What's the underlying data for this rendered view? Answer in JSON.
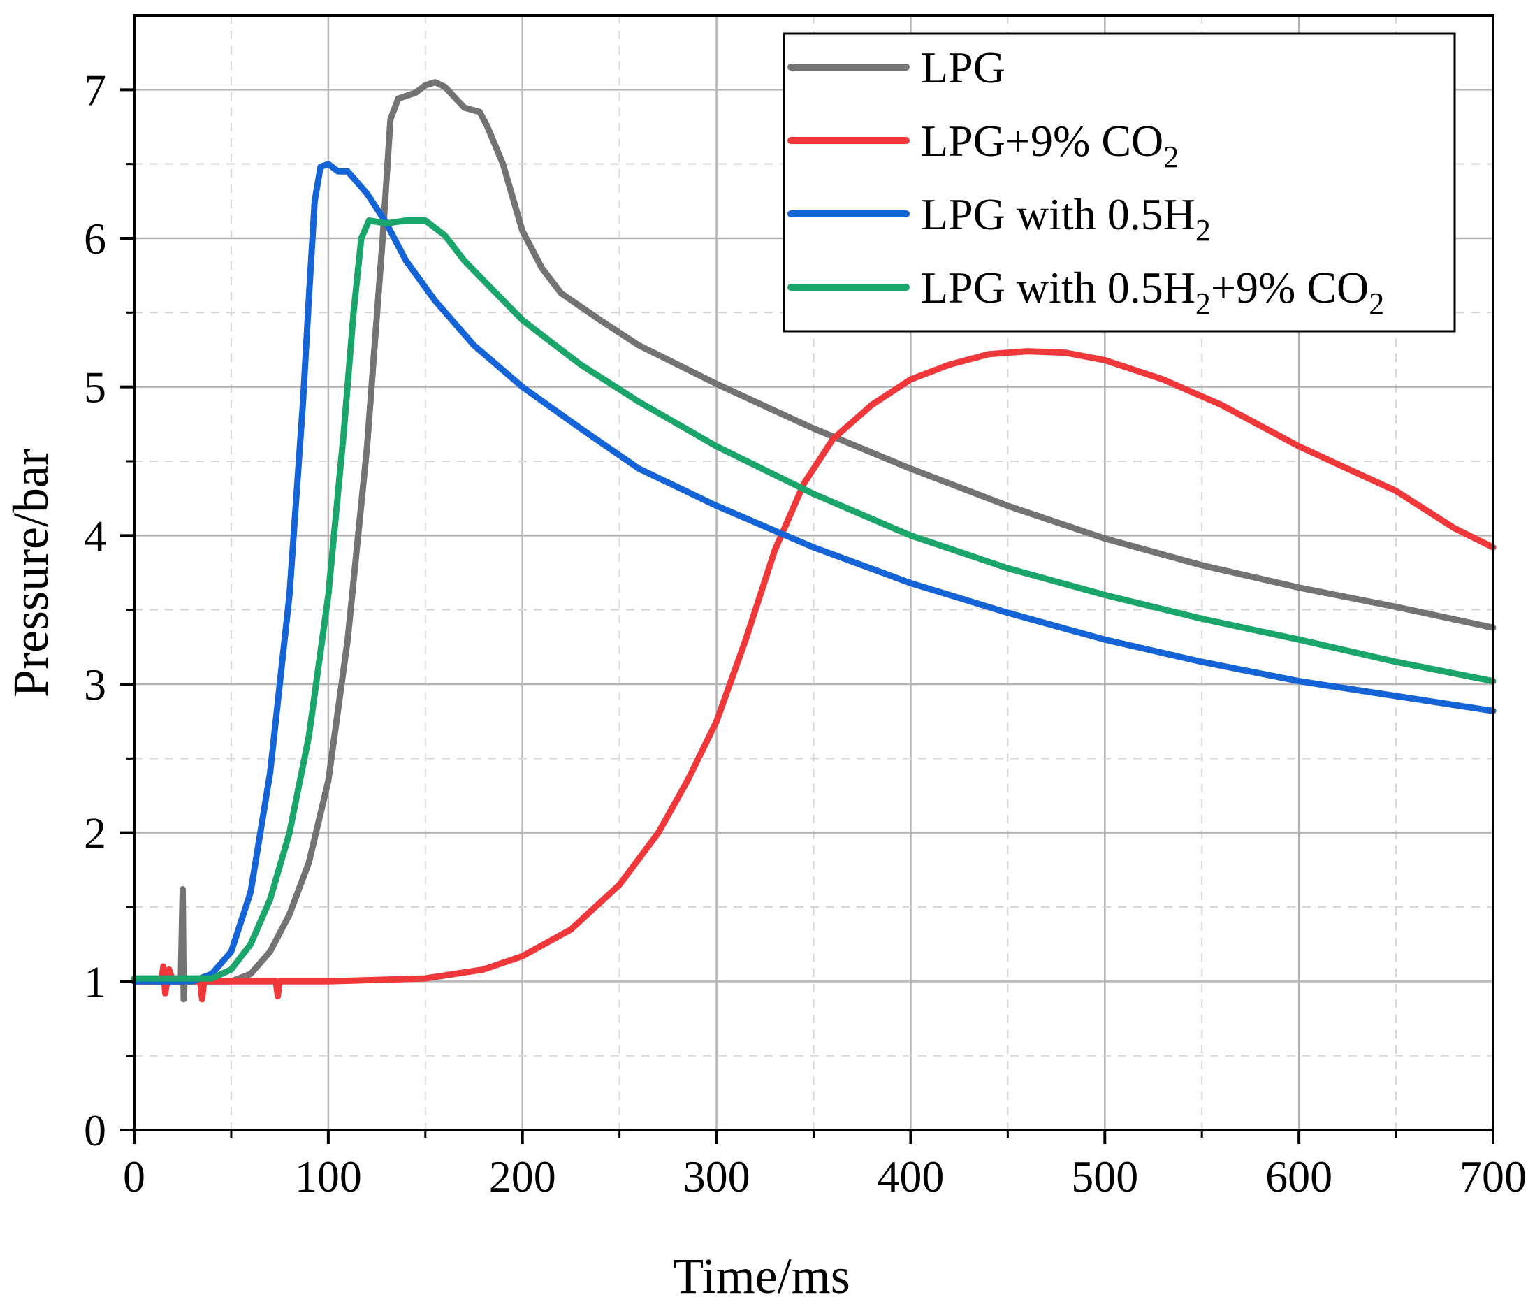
{
  "chart_data": {
    "type": "line",
    "title": "",
    "xlabel": "Time/ms",
    "ylabel": "Pressure/bar",
    "xlim": [
      0,
      700
    ],
    "ylim": [
      0,
      7.5
    ],
    "xticks": [
      0,
      100,
      200,
      300,
      400,
      500,
      600,
      700
    ],
    "xtick_labels": [
      "0",
      "100",
      "200",
      "300",
      "400",
      "500",
      "600",
      "700"
    ],
    "yticks": [
      0,
      1,
      2,
      3,
      4,
      5,
      6,
      7
    ],
    "ytick_labels": [
      "0",
      "1",
      "2",
      "3",
      "4",
      "5",
      "6",
      "7"
    ],
    "grid": true,
    "legend_position": "top-right",
    "series": [
      {
        "name": "LPG",
        "legend_main": "LPG",
        "legend_sub": "",
        "legend_tail": "",
        "legend_sub2": "",
        "color": "#737373",
        "points": [
          [
            0,
            1.0
          ],
          [
            20,
            1.0
          ],
          [
            24,
            1.0
          ],
          [
            25,
            1.62
          ],
          [
            25.5,
            0.88
          ],
          [
            26,
            1.0
          ],
          [
            50,
            1.0
          ],
          [
            60,
            1.05
          ],
          [
            70,
            1.2
          ],
          [
            80,
            1.45
          ],
          [
            90,
            1.8
          ],
          [
            100,
            2.35
          ],
          [
            110,
            3.3
          ],
          [
            120,
            4.6
          ],
          [
            128,
            6.0
          ],
          [
            132,
            6.8
          ],
          [
            136,
            6.94
          ],
          [
            145,
            6.98
          ],
          [
            150,
            7.03
          ],
          [
            155,
            7.05
          ],
          [
            160,
            7.02
          ],
          [
            170,
            6.88
          ],
          [
            178,
            6.85
          ],
          [
            182,
            6.75
          ],
          [
            190,
            6.5
          ],
          [
            200,
            6.05
          ],
          [
            210,
            5.8
          ],
          [
            220,
            5.63
          ],
          [
            240,
            5.45
          ],
          [
            260,
            5.28
          ],
          [
            300,
            5.02
          ],
          [
            350,
            4.72
          ],
          [
            400,
            4.45
          ],
          [
            450,
            4.2
          ],
          [
            500,
            3.98
          ],
          [
            550,
            3.8
          ],
          [
            600,
            3.65
          ],
          [
            650,
            3.52
          ],
          [
            700,
            3.38
          ]
        ]
      },
      {
        "name": "LPG+9% CO2",
        "legend_main": "LPG+9% CO",
        "legend_sub": "2",
        "legend_tail": "",
        "legend_sub2": "",
        "color": "#f0373a",
        "points": [
          [
            0,
            1.0
          ],
          [
            14,
            1.0
          ],
          [
            15,
            1.1
          ],
          [
            16,
            0.92
          ],
          [
            18,
            1.08
          ],
          [
            20,
            1.0
          ],
          [
            34,
            1.0
          ],
          [
            35,
            0.88
          ],
          [
            36,
            1.0
          ],
          [
            73,
            1.0
          ],
          [
            74,
            0.9
          ],
          [
            75,
            1.0
          ],
          [
            100,
            1.0
          ],
          [
            150,
            1.02
          ],
          [
            180,
            1.08
          ],
          [
            200,
            1.17
          ],
          [
            225,
            1.35
          ],
          [
            250,
            1.65
          ],
          [
            270,
            2.0
          ],
          [
            285,
            2.35
          ],
          [
            300,
            2.75
          ],
          [
            315,
            3.3
          ],
          [
            330,
            3.9
          ],
          [
            345,
            4.35
          ],
          [
            360,
            4.65
          ],
          [
            380,
            4.88
          ],
          [
            400,
            5.05
          ],
          [
            420,
            5.15
          ],
          [
            440,
            5.22
          ],
          [
            460,
            5.24
          ],
          [
            480,
            5.23
          ],
          [
            500,
            5.18
          ],
          [
            530,
            5.05
          ],
          [
            560,
            4.88
          ],
          [
            600,
            4.6
          ],
          [
            650,
            4.3
          ],
          [
            680,
            4.05
          ],
          [
            700,
            3.92
          ]
        ]
      },
      {
        "name": "LPG with 0.5H2",
        "legend_main": "LPG with 0.5H",
        "legend_sub": "2",
        "legend_tail": "",
        "legend_sub2": "",
        "color": "#1464d8",
        "points": [
          [
            0,
            1.0
          ],
          [
            30,
            1.0
          ],
          [
            40,
            1.05
          ],
          [
            50,
            1.2
          ],
          [
            60,
            1.6
          ],
          [
            70,
            2.4
          ],
          [
            80,
            3.6
          ],
          [
            87,
            4.9
          ],
          [
            90,
            5.6
          ],
          [
            93,
            6.25
          ],
          [
            96,
            6.48
          ],
          [
            100,
            6.5
          ],
          [
            105,
            6.45
          ],
          [
            110,
            6.45
          ],
          [
            120,
            6.3
          ],
          [
            130,
            6.1
          ],
          [
            140,
            5.85
          ],
          [
            155,
            5.58
          ],
          [
            175,
            5.28
          ],
          [
            200,
            5.0
          ],
          [
            230,
            4.72
          ],
          [
            260,
            4.45
          ],
          [
            300,
            4.2
          ],
          [
            350,
            3.92
          ],
          [
            400,
            3.68
          ],
          [
            450,
            3.48
          ],
          [
            500,
            3.3
          ],
          [
            550,
            3.15
          ],
          [
            600,
            3.02
          ],
          [
            650,
            2.92
          ],
          [
            700,
            2.82
          ]
        ]
      },
      {
        "name": "LPG with 0.5H2+9% CO2",
        "legend_main": "LPG with 0.5H",
        "legend_sub": "2",
        "legend_tail": "+9% CO",
        "legend_sub2": "2",
        "color": "#1aa56a",
        "points": [
          [
            0,
            1.02
          ],
          [
            40,
            1.02
          ],
          [
            50,
            1.08
          ],
          [
            60,
            1.25
          ],
          [
            70,
            1.55
          ],
          [
            80,
            2.0
          ],
          [
            90,
            2.65
          ],
          [
            100,
            3.6
          ],
          [
            108,
            4.7
          ],
          [
            113,
            5.5
          ],
          [
            117,
            6.0
          ],
          [
            121,
            6.12
          ],
          [
            130,
            6.1
          ],
          [
            140,
            6.12
          ],
          [
            150,
            6.12
          ],
          [
            160,
            6.02
          ],
          [
            170,
            5.85
          ],
          [
            185,
            5.65
          ],
          [
            200,
            5.45
          ],
          [
            230,
            5.15
          ],
          [
            260,
            4.9
          ],
          [
            300,
            4.6
          ],
          [
            350,
            4.28
          ],
          [
            400,
            4.0
          ],
          [
            450,
            3.78
          ],
          [
            500,
            3.6
          ],
          [
            550,
            3.44
          ],
          [
            600,
            3.3
          ],
          [
            650,
            3.15
          ],
          [
            700,
            3.02
          ]
        ]
      }
    ]
  }
}
